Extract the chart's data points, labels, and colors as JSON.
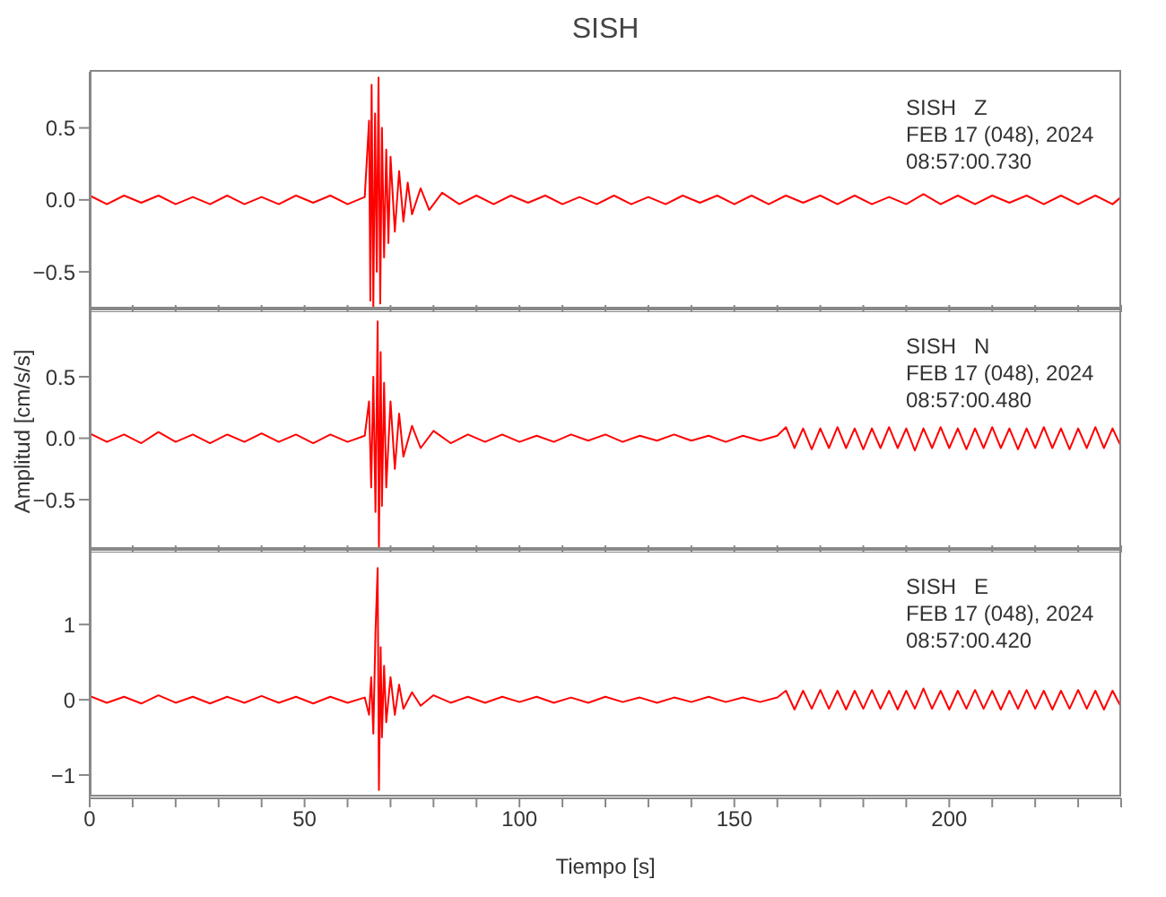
{
  "chart_data": [
    {
      "type": "line",
      "title": "SISH",
      "color": "#ff0000",
      "annotations": [
        "SISH   Z",
        "FEB 17 (048), 2024",
        "08:57:00.730"
      ],
      "x": [
        0,
        4,
        8,
        12,
        16,
        20,
        24,
        28,
        32,
        36,
        40,
        44,
        48,
        52,
        56,
        60,
        64,
        65,
        65.3,
        65.6,
        66,
        66.4,
        66.8,
        67.2,
        67.6,
        68,
        68.5,
        69,
        69.5,
        70,
        71,
        72,
        73,
        74,
        75,
        77,
        79,
        82,
        86,
        90,
        94,
        98,
        102,
        106,
        110,
        114,
        118,
        122,
        126,
        130,
        134,
        138,
        142,
        146,
        150,
        154,
        158,
        162,
        166,
        170,
        174,
        178,
        182,
        186,
        190,
        194,
        198,
        202,
        206,
        210,
        214,
        218,
        222,
        226,
        230,
        234,
        238,
        240
      ],
      "values": [
        0.03,
        -0.03,
        0.03,
        -0.02,
        0.03,
        -0.03,
        0.02,
        -0.03,
        0.03,
        -0.03,
        0.02,
        -0.03,
        0.03,
        -0.02,
        0.03,
        -0.03,
        0.02,
        0.55,
        -0.7,
        0.8,
        -0.75,
        0.6,
        -0.5,
        0.85,
        -0.72,
        0.5,
        -0.4,
        0.35,
        -0.3,
        0.3,
        -0.22,
        0.2,
        -0.15,
        0.12,
        -0.1,
        0.08,
        -0.07,
        0.05,
        -0.03,
        0.03,
        -0.03,
        0.03,
        -0.02,
        0.03,
        -0.03,
        0.02,
        -0.03,
        0.03,
        -0.03,
        0.02,
        -0.03,
        0.03,
        -0.02,
        0.03,
        -0.03,
        0.03,
        -0.03,
        0.03,
        -0.02,
        0.03,
        -0.03,
        0.03,
        -0.03,
        0.02,
        -0.03,
        0.04,
        -0.03,
        0.03,
        -0.03,
        0.03,
        -0.02,
        0.03,
        -0.03,
        0.03,
        -0.03,
        0.03,
        -0.03,
        0.02
      ],
      "xlim": [
        0,
        240
      ],
      "xticks": [
        0,
        {
          "value": 10,
          "label": null
        },
        {
          "value": 20,
          "label": null
        },
        {
          "value": 30,
          "label": null
        },
        {
          "value": 40,
          "label": null
        },
        50,
        {
          "value": 60,
          "label": null
        },
        {
          "value": 70,
          "label": null
        },
        {
          "value": 80,
          "label": null
        },
        {
          "value": 90,
          "label": null
        },
        100,
        {
          "value": 110,
          "label": null
        },
        {
          "value": 120,
          "label": null
        },
        {
          "value": 130,
          "label": null
        },
        {
          "value": 140,
          "label": null
        },
        150,
        {
          "value": 160,
          "label": null
        },
        {
          "value": 170,
          "label": null
        },
        {
          "value": 180,
          "label": null
        },
        {
          "value": 190,
          "label": null
        },
        200,
        {
          "value": 210,
          "label": null
        },
        {
          "value": 220,
          "label": null
        },
        {
          "value": 230,
          "label": null
        },
        {
          "value": 240,
          "label": null
        }
      ],
      "ylim": [
        -0.78,
        0.89
      ],
      "yticks": [
        {
          "value": -0.5,
          "label": "−0.5"
        },
        {
          "value": 0,
          "label": "0.0"
        },
        0.5
      ],
      "tick_labels": "y"
    },
    {
      "type": "line",
      "ylabel": "Amplitud [cm/s/s]",
      "color": "#ff0000",
      "annotations": [
        "SISH   N",
        "FEB 17 (048), 2024",
        "08:57:00.480"
      ],
      "x": [
        0,
        4,
        8,
        12,
        16,
        20,
        24,
        28,
        32,
        36,
        40,
        44,
        48,
        52,
        56,
        60,
        64,
        65,
        65.5,
        66,
        66.5,
        67,
        67.3,
        67.7,
        68,
        68.5,
        69,
        70,
        71,
        72,
        73,
        75,
        77,
        80,
        84,
        88,
        92,
        96,
        100,
        104,
        108,
        112,
        116,
        120,
        124,
        128,
        132,
        136,
        140,
        144,
        148,
        152,
        156,
        160,
        162,
        164,
        166,
        168,
        170,
        172,
        174,
        176,
        178,
        180,
        182,
        184,
        186,
        188,
        190,
        192,
        194,
        196,
        198,
        200,
        202,
        204,
        206,
        208,
        210,
        212,
        214,
        216,
        218,
        220,
        222,
        224,
        226,
        228,
        230,
        232,
        234,
        236,
        238,
        240
      ],
      "values": [
        0.04,
        -0.03,
        0.03,
        -0.04,
        0.05,
        -0.03,
        0.03,
        -0.04,
        0.03,
        -0.03,
        0.04,
        -0.03,
        0.03,
        -0.04,
        0.03,
        -0.03,
        0.02,
        0.3,
        -0.4,
        0.5,
        -0.6,
        0.95,
        -0.9,
        0.7,
        -0.55,
        0.45,
        -0.4,
        0.3,
        -0.25,
        0.2,
        -0.15,
        0.1,
        -0.08,
        0.06,
        -0.04,
        0.03,
        -0.03,
        0.03,
        -0.03,
        0.02,
        -0.03,
        0.03,
        -0.02,
        0.03,
        -0.03,
        0.02,
        -0.02,
        0.03,
        -0.02,
        0.02,
        -0.03,
        0.02,
        -0.02,
        0.02,
        0.09,
        -0.08,
        0.08,
        -0.09,
        0.08,
        -0.08,
        0.09,
        -0.08,
        0.08,
        -0.09,
        0.08,
        -0.08,
        0.09,
        -0.08,
        0.08,
        -0.1,
        0.08,
        -0.08,
        0.09,
        -0.08,
        0.08,
        -0.09,
        0.08,
        -0.08,
        0.09,
        -0.08,
        0.08,
        -0.09,
        0.08,
        -0.08,
        0.09,
        -0.08,
        0.08,
        -0.09,
        0.08,
        -0.08,
        0.09,
        -0.08,
        0.08,
        -0.07
      ],
      "xlim": [
        0,
        240
      ],
      "xticks": [
        0,
        {
          "value": 10,
          "label": null
        },
        {
          "value": 20,
          "label": null
        },
        {
          "value": 30,
          "label": null
        },
        {
          "value": 40,
          "label": null
        },
        50,
        {
          "value": 60,
          "label": null
        },
        {
          "value": 70,
          "label": null
        },
        {
          "value": 80,
          "label": null
        },
        {
          "value": 90,
          "label": null
        },
        100,
        {
          "value": 110,
          "label": null
        },
        {
          "value": 120,
          "label": null
        },
        {
          "value": 130,
          "label": null
        },
        {
          "value": 140,
          "label": null
        },
        150,
        {
          "value": 160,
          "label": null
        },
        {
          "value": 170,
          "label": null
        },
        {
          "value": 180,
          "label": null
        },
        {
          "value": 190,
          "label": null
        },
        200,
        {
          "value": 210,
          "label": null
        },
        {
          "value": 220,
          "label": null
        },
        {
          "value": 230,
          "label": null
        },
        {
          "value": 240,
          "label": null
        }
      ],
      "ylim": [
        -0.93,
        1.04
      ],
      "yticks": [
        {
          "value": -0.5,
          "label": "−0.5"
        },
        {
          "value": 0,
          "label": "0.0"
        },
        0.5
      ],
      "tick_labels": "y"
    },
    {
      "type": "line",
      "xlabel": "Tiempo [s]",
      "color": "#ff0000",
      "annotations": [
        "SISH   E",
        "FEB 17 (048), 2024",
        "08:57:00.420"
      ],
      "x": [
        0,
        4,
        8,
        12,
        16,
        20,
        24,
        28,
        32,
        36,
        40,
        44,
        48,
        52,
        56,
        60,
        64,
        65,
        65.5,
        66,
        66.5,
        67,
        67.3,
        67.7,
        68,
        68.5,
        69,
        70,
        71,
        72,
        73,
        75,
        77,
        80,
        84,
        88,
        92,
        96,
        100,
        104,
        108,
        112,
        116,
        120,
        124,
        128,
        132,
        136,
        140,
        144,
        148,
        152,
        156,
        160,
        162,
        164,
        166,
        168,
        170,
        172,
        174,
        176,
        178,
        180,
        182,
        184,
        186,
        188,
        190,
        192,
        194,
        196,
        198,
        200,
        202,
        204,
        206,
        208,
        210,
        212,
        214,
        216,
        218,
        220,
        222,
        224,
        226,
        228,
        230,
        232,
        234,
        236,
        238,
        240
      ],
      "values": [
        0.05,
        -0.04,
        0.04,
        -0.05,
        0.06,
        -0.04,
        0.04,
        -0.05,
        0.04,
        -0.04,
        0.05,
        -0.04,
        0.04,
        -0.05,
        0.04,
        -0.04,
        0.03,
        -0.2,
        0.3,
        -0.45,
        0.9,
        1.75,
        -1.2,
        0.7,
        -0.5,
        0.45,
        -0.3,
        0.3,
        -0.2,
        0.2,
        -0.12,
        0.1,
        -0.08,
        0.06,
        -0.04,
        0.04,
        -0.04,
        0.04,
        -0.03,
        0.04,
        -0.04,
        0.03,
        -0.04,
        0.04,
        -0.03,
        0.03,
        -0.04,
        0.03,
        -0.03,
        0.04,
        -0.03,
        0.03,
        -0.03,
        0.03,
        0.12,
        -0.13,
        0.12,
        -0.12,
        0.13,
        -0.12,
        0.12,
        -0.13,
        0.12,
        -0.12,
        0.13,
        -0.12,
        0.12,
        -0.13,
        0.12,
        -0.12,
        0.15,
        -0.12,
        0.12,
        -0.13,
        0.12,
        -0.12,
        0.13,
        -0.12,
        0.12,
        -0.13,
        0.12,
        -0.12,
        0.13,
        -0.12,
        0.12,
        -0.13,
        0.12,
        -0.12,
        0.13,
        -0.12,
        0.12,
        -0.13,
        0.12,
        -0.1
      ],
      "xlim": [
        0,
        240
      ],
      "xticks": [
        0,
        {
          "value": 10,
          "label": null
        },
        {
          "value": 20,
          "label": null
        },
        {
          "value": 30,
          "label": null
        },
        {
          "value": 40,
          "label": null
        },
        50,
        {
          "value": 60,
          "label": null
        },
        {
          "value": 70,
          "label": null
        },
        {
          "value": 80,
          "label": null
        },
        {
          "value": 90,
          "label": null
        },
        100,
        {
          "value": 110,
          "label": null
        },
        {
          "value": 120,
          "label": null
        },
        {
          "value": 130,
          "label": null
        },
        {
          "value": 140,
          "label": null
        },
        150,
        {
          "value": 160,
          "label": null
        },
        {
          "value": 170,
          "label": null
        },
        {
          "value": 180,
          "label": null
        },
        {
          "value": 190,
          "label": null
        },
        200,
        {
          "value": 210,
          "label": null
        },
        {
          "value": 220,
          "label": null
        },
        {
          "value": 230,
          "label": null
        },
        {
          "value": 240,
          "label": null
        }
      ],
      "ylim": [
        -1.31,
        1.98
      ],
      "yticks": [
        {
          "value": -1,
          "label": "−1"
        },
        0,
        1
      ]
    }
  ]
}
